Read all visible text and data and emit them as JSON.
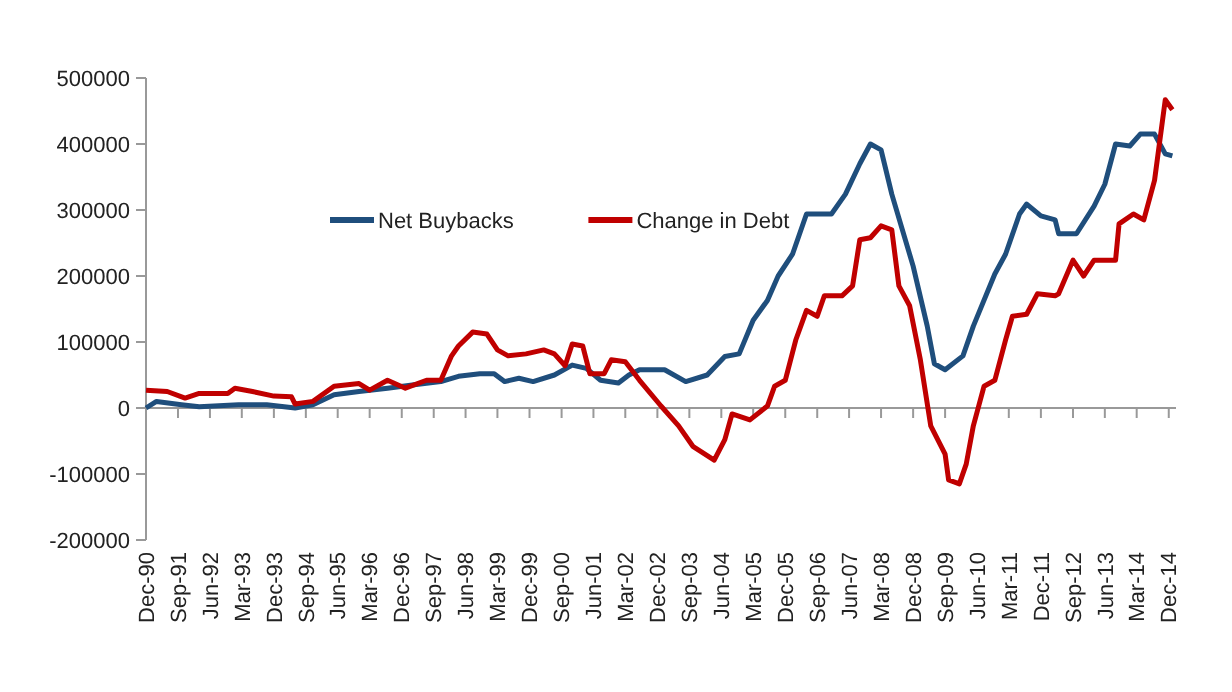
{
  "chart_data": {
    "type": "line",
    "xlim": [
      "1990-12",
      "2015-02"
    ],
    "ylim": [
      -200000,
      500000
    ],
    "yticks": [
      -200000,
      -100000,
      0,
      100000,
      200000,
      300000,
      400000,
      500000
    ],
    "xticks": [
      {
        "value": "1990-12",
        "label": "Dec-90"
      },
      {
        "value": "1991-09",
        "label": "Sep-91"
      },
      {
        "value": "1992-06",
        "label": "Jun-92"
      },
      {
        "value": "1993-03",
        "label": "Mar-93"
      },
      {
        "value": "1993-12",
        "label": "Dec-93"
      },
      {
        "value": "1994-09",
        "label": "Sep-94"
      },
      {
        "value": "1995-06",
        "label": "Jun-95"
      },
      {
        "value": "1996-03",
        "label": "Mar-96"
      },
      {
        "value": "1996-12",
        "label": "Dec-96"
      },
      {
        "value": "1997-09",
        "label": "Sep-97"
      },
      {
        "value": "1998-06",
        "label": "Jun-98"
      },
      {
        "value": "1999-03",
        "label": "Mar-99"
      },
      {
        "value": "1999-12",
        "label": "Dec-99"
      },
      {
        "value": "2000-09",
        "label": "Sep-00"
      },
      {
        "value": "2001-06",
        "label": "Jun-01"
      },
      {
        "value": "2002-03",
        "label": "Mar-02"
      },
      {
        "value": "2002-12",
        "label": "Dec-02"
      },
      {
        "value": "2003-09",
        "label": "Sep-03"
      },
      {
        "value": "2004-06",
        "label": "Jun-04"
      },
      {
        "value": "2005-03",
        "label": "Mar-05"
      },
      {
        "value": "2005-12",
        "label": "Dec-05"
      },
      {
        "value": "2006-09",
        "label": "Sep-06"
      },
      {
        "value": "2007-06",
        "label": "Jun-07"
      },
      {
        "value": "2008-03",
        "label": "Mar-08"
      },
      {
        "value": "2008-12",
        "label": "Dec-08"
      },
      {
        "value": "2009-09",
        "label": "Sep-09"
      },
      {
        "value": "2010-06",
        "label": "Jun-10"
      },
      {
        "value": "2011-03",
        "label": "Mar-11"
      },
      {
        "value": "2011-12",
        "label": "Dec-11"
      },
      {
        "value": "2012-09",
        "label": "Sep-12"
      },
      {
        "value": "2013-06",
        "label": "Jun-13"
      },
      {
        "value": "2014-03",
        "label": "Mar-14"
      },
      {
        "value": "2014-12",
        "label": "Dec-14"
      }
    ],
    "legend": "top left",
    "marker": "none",
    "line_style": "solid",
    "series": [
      {
        "name": "Net Buybacks",
        "color": "#1f4e7c",
        "x": [
          "1990-12",
          "1991-03",
          "1991-10",
          "1992-03",
          "1993-02",
          "1993-10",
          "1994-06",
          "1994-11",
          "1995-05",
          "1995-12",
          "1996-08",
          "1997-03",
          "1997-11",
          "1998-04",
          "1998-10",
          "1999-02",
          "1999-05",
          "1999-09",
          "2000-01",
          "2000-07",
          "2000-12",
          "2001-04",
          "2001-08",
          "2002-01",
          "2002-04",
          "2002-07",
          "2003-02",
          "2003-08",
          "2004-02",
          "2004-07",
          "2004-11",
          "2005-03",
          "2005-07",
          "2005-10",
          "2006-02",
          "2006-06",
          "2007-01",
          "2007-05",
          "2007-09",
          "2007-12",
          "2008-03",
          "2008-06",
          "2008-12",
          "2009-04",
          "2009-06",
          "2009-09",
          "2010-02",
          "2010-05",
          "2010-11",
          "2011-02",
          "2011-06",
          "2011-08",
          "2011-12",
          "2012-04",
          "2012-05",
          "2012-10",
          "2013-03",
          "2013-06",
          "2013-09",
          "2014-01",
          "2014-04",
          "2014-08",
          "2014-11",
          "2015-01"
        ],
        "values": [
          0,
          10000,
          5000,
          2000,
          5000,
          5000,
          0,
          5000,
          20000,
          25000,
          30000,
          35000,
          40000,
          48000,
          52000,
          52000,
          40000,
          45000,
          40000,
          50000,
          65000,
          60000,
          42000,
          38000,
          50000,
          58000,
          58000,
          40000,
          50000,
          78000,
          82000,
          133000,
          163000,
          200000,
          233000,
          294000,
          294000,
          324000,
          370000,
          400000,
          391000,
          324000,
          215000,
          124000,
          67000,
          58000,
          79000,
          124000,
          203000,
          233000,
          294000,
          309000,
          291000,
          285000,
          264000,
          264000,
          306000,
          339000,
          400000,
          397000,
          415000,
          415000,
          385000,
          382000
        ]
      },
      {
        "name": "Change in Debt",
        "color": "#c00000",
        "x": [
          "1990-12",
          "1991-06",
          "1991-11",
          "1992-03",
          "1992-11",
          "1993-01",
          "1993-06",
          "1993-12",
          "1994-05",
          "1994-06",
          "1994-11",
          "1995-05",
          "1995-12",
          "1996-03",
          "1996-08",
          "1997-01",
          "1997-07",
          "1997-11",
          "1998-02",
          "1998-04",
          "1998-08",
          "1998-12",
          "1999-03",
          "1999-06",
          "1999-11",
          "2000-04",
          "2000-07",
          "2000-10",
          "2000-12",
          "2001-03",
          "2001-05",
          "2001-09",
          "2001-11",
          "2002-03",
          "2002-07",
          "2003-01",
          "2003-06",
          "2003-10",
          "2004-04",
          "2004-07",
          "2004-09",
          "2005-02",
          "2005-07",
          "2005-09",
          "2005-12",
          "2006-03",
          "2006-06",
          "2006-09",
          "2006-11",
          "2007-04",
          "2007-07",
          "2007-09",
          "2007-12",
          "2008-03",
          "2008-06",
          "2008-08",
          "2008-11",
          "2009-02",
          "2009-05",
          "2009-09",
          "2009-10",
          "2010-01",
          "2010-03",
          "2010-05",
          "2010-08",
          "2010-11",
          "2011-02",
          "2011-04",
          "2011-08",
          "2011-11",
          "2012-04",
          "2012-05",
          "2012-09",
          "2012-12",
          "2013-03",
          "2013-09",
          "2013-10",
          "2014-02",
          "2014-05",
          "2014-08",
          "2014-11",
          "2015-01"
        ],
        "values": [
          27000,
          25000,
          15000,
          22000,
          22000,
          30000,
          25000,
          18000,
          17000,
          6000,
          10000,
          33000,
          37000,
          27000,
          42000,
          30000,
          42000,
          42000,
          79000,
          94000,
          115000,
          112000,
          88000,
          79000,
          82000,
          88000,
          82000,
          64000,
          97000,
          94000,
          52000,
          52000,
          73000,
          70000,
          42000,
          3000,
          -27000,
          -58000,
          -79000,
          -48000,
          -9000,
          -18000,
          3000,
          33000,
          42000,
          103000,
          148000,
          139000,
          170000,
          170000,
          185000,
          255000,
          258000,
          276000,
          270000,
          185000,
          155000,
          73000,
          -27000,
          -70000,
          -109000,
          -115000,
          -85000,
          -27000,
          33000,
          42000,
          103000,
          139000,
          142000,
          173000,
          170000,
          173000,
          224000,
          200000,
          224000,
          224000,
          279000,
          294000,
          285000,
          345000,
          467000,
          452000
        ]
      }
    ]
  }
}
